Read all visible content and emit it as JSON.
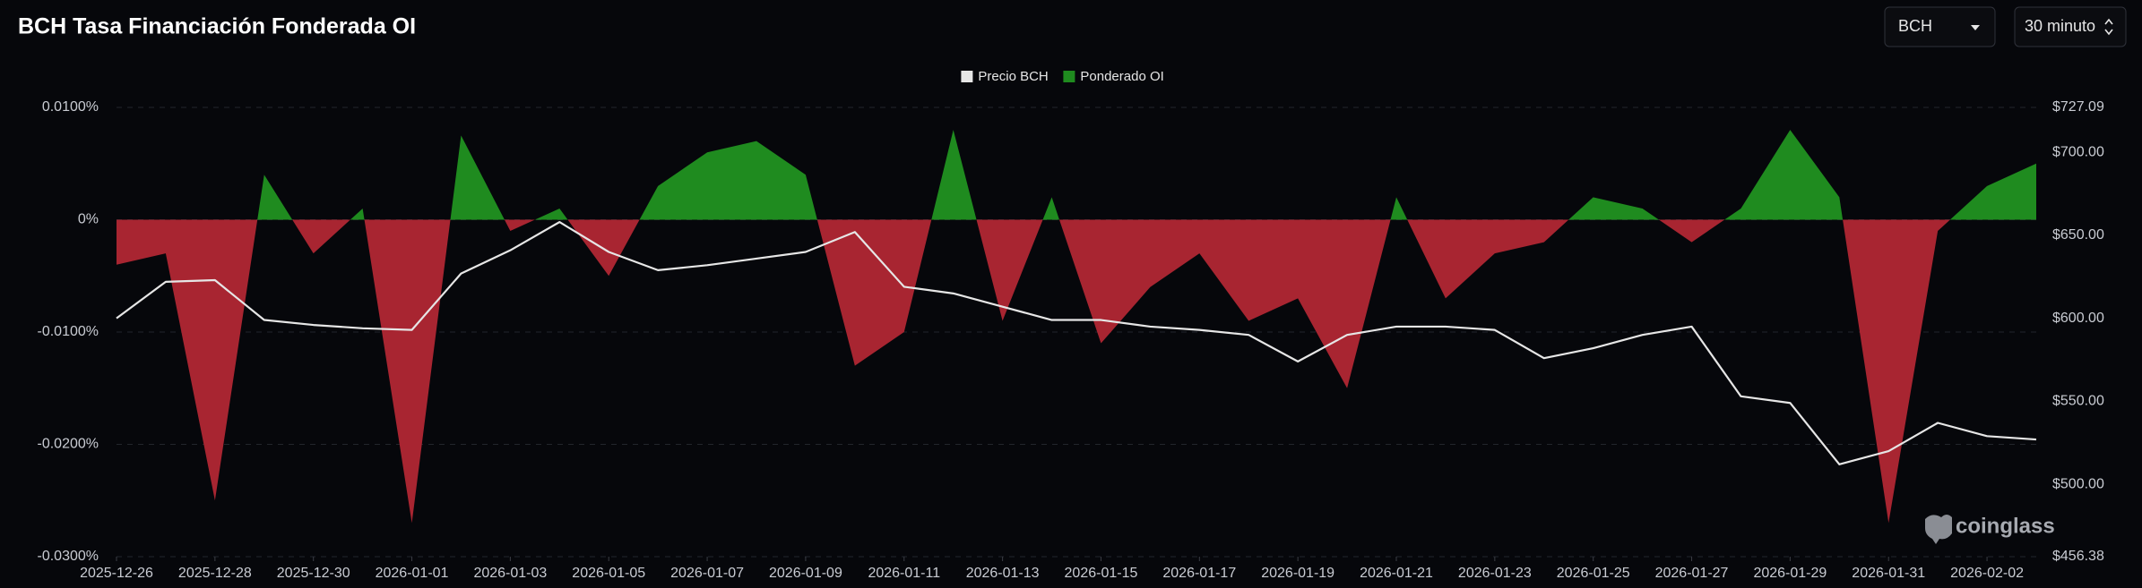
{
  "title": "BCH Tasa Financiación Fonderada OI",
  "controls": {
    "symbol": "BCH",
    "interval": "30 minuto"
  },
  "watermark": "coinglass",
  "chart_data": {
    "type": "area",
    "x": [
      "2025-12-26",
      "2025-12-27",
      "2025-12-28",
      "2025-12-29",
      "2025-12-30",
      "2025-12-31",
      "2026-01-01",
      "2026-01-02",
      "2026-01-03",
      "2026-01-04",
      "2026-01-05",
      "2026-01-06",
      "2026-01-07",
      "2026-01-08",
      "2026-01-09",
      "2026-01-10",
      "2026-01-11",
      "2026-01-12",
      "2026-01-13",
      "2026-01-14",
      "2026-01-15",
      "2026-01-16",
      "2026-01-17",
      "2026-01-18",
      "2026-01-19",
      "2026-01-20",
      "2026-01-21",
      "2026-01-22",
      "2026-01-23",
      "2026-01-24",
      "2026-01-25",
      "2026-01-26",
      "2026-01-27",
      "2026-01-28",
      "2026-01-29",
      "2026-01-30",
      "2026-01-31",
      "2026-02-01",
      "2026-02-02",
      "2026-02-03"
    ],
    "series": [
      {
        "name": "Precio BCH",
        "type": "line",
        "axis": "y2",
        "color": "#e6e6e6",
        "values": [
          600,
          622,
          623,
          599,
          596,
          594,
          593,
          627,
          641,
          658,
          640,
          629,
          632,
          636,
          640,
          652,
          619,
          615,
          607,
          599,
          599,
          595,
          593,
          590,
          574,
          590,
          595,
          595,
          593,
          576,
          582,
          590,
          595,
          553,
          549,
          512,
          520,
          537,
          529,
          527
        ]
      },
      {
        "name": "Ponderado OI",
        "type": "area",
        "axis": "y",
        "color": "#1f8b1f",
        "negative_color": "#a82531",
        "values": [
          -0.004,
          -0.003,
          -0.025,
          0.004,
          -0.003,
          0.001,
          -0.027,
          0.0075,
          -0.001,
          0.001,
          -0.005,
          0.003,
          0.006,
          0.007,
          0.004,
          -0.013,
          -0.01,
          0.008,
          -0.009,
          0.002,
          -0.011,
          -0.006,
          -0.003,
          -0.009,
          -0.007,
          -0.015,
          0.002,
          -0.007,
          -0.003,
          -0.002,
          0.002,
          0.001,
          -0.002,
          0.001,
          0.008,
          0.002,
          -0.027,
          -0.001,
          0.003,
          0.005
        ]
      }
    ],
    "xlim": [
      "2025-12-26",
      "2026-02-03"
    ],
    "xticks": [
      "2025-12-26",
      "2025-12-28",
      "2025-12-30",
      "2026-01-01",
      "2026-01-03",
      "2026-01-05",
      "2026-01-07",
      "2026-01-09",
      "2026-01-11",
      "2026-01-13",
      "2026-01-15",
      "2026-01-17",
      "2026-01-19",
      "2026-01-21",
      "2026-01-23",
      "2026-01-25",
      "2026-01-27",
      "2026-01-29",
      "2026-01-31",
      "2026-02-02"
    ],
    "ylim": [
      -0.03,
      0.01
    ],
    "yticks": [
      {
        "value": 0.01,
        "label": "0.0100%"
      },
      {
        "value": 0,
        "label": "0%"
      },
      {
        "value": -0.01,
        "label": "-0.0100%"
      },
      {
        "value": -0.02,
        "label": "-0.0200%"
      },
      {
        "value": -0.03,
        "label": "-0.0300%"
      }
    ],
    "y2lim": [
      456.38,
      727.09
    ],
    "y2ticks": [
      {
        "value": 727.09,
        "label": "$727.09"
      },
      {
        "value": 700,
        "label": "$700.00"
      },
      {
        "value": 650,
        "label": "$650.00"
      },
      {
        "value": 600,
        "label": "$600.00"
      },
      {
        "value": 550,
        "label": "$550.00"
      },
      {
        "value": 500,
        "label": "$500.00"
      },
      {
        "value": 456.38,
        "label": "$456.38"
      }
    ],
    "grid": true,
    "legend": "top"
  }
}
